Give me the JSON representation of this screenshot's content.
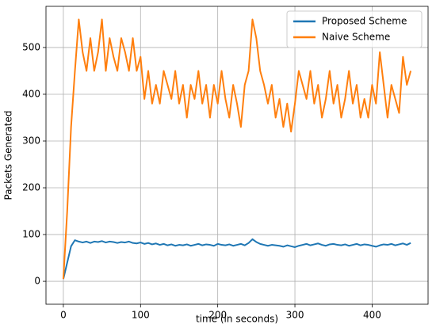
{
  "chart_data": {
    "type": "line",
    "xlabel": "time (in seconds)",
    "ylabel": "Packets Generated",
    "x": [
      0,
      5,
      10,
      15,
      20,
      25,
      30,
      35,
      40,
      45,
      50,
      55,
      60,
      65,
      70,
      75,
      80,
      85,
      90,
      95,
      100,
      105,
      110,
      115,
      120,
      125,
      130,
      135,
      140,
      145,
      150,
      155,
      160,
      165,
      170,
      175,
      180,
      185,
      190,
      195,
      200,
      205,
      210,
      215,
      220,
      225,
      230,
      235,
      240,
      245,
      250,
      255,
      260,
      265,
      270,
      275,
      280,
      285,
      290,
      295,
      300,
      305,
      310,
      315,
      320,
      325,
      330,
      335,
      340,
      345,
      350,
      355,
      360,
      365,
      370,
      375,
      380,
      385,
      390,
      395,
      400,
      405,
      410,
      415,
      420,
      425,
      430,
      435,
      440,
      445,
      450
    ],
    "series": [
      {
        "name": "Proposed Scheme",
        "color": "#1f77b4",
        "values": [
          5,
          40,
          75,
          88,
          85,
          83,
          85,
          82,
          85,
          84,
          86,
          83,
          85,
          84,
          82,
          84,
          83,
          85,
          82,
          81,
          83,
          80,
          82,
          79,
          81,
          78,
          80,
          77,
          79,
          76,
          78,
          77,
          79,
          76,
          78,
          80,
          77,
          79,
          78,
          76,
          80,
          78,
          77,
          79,
          76,
          78,
          80,
          77,
          82,
          90,
          84,
          80,
          78,
          76,
          78,
          77,
          76,
          74,
          77,
          75,
          73,
          76,
          78,
          80,
          77,
          79,
          81,
          78,
          76,
          79,
          80,
          78,
          77,
          79,
          76,
          78,
          80,
          77,
          79,
          78,
          76,
          74,
          77,
          79,
          78,
          80,
          77,
          79,
          81,
          78,
          82
        ]
      },
      {
        "name": "Naive Scheme",
        "color": "#ff7f0e",
        "values": [
          5,
          150,
          330,
          450,
          560,
          490,
          450,
          520,
          450,
          490,
          560,
          450,
          520,
          480,
          450,
          520,
          490,
          450,
          520,
          450,
          480,
          390,
          450,
          380,
          420,
          380,
          450,
          420,
          390,
          450,
          380,
          420,
          350,
          420,
          390,
          450,
          380,
          420,
          350,
          420,
          380,
          450,
          390,
          350,
          420,
          380,
          330,
          420,
          450,
          560,
          520,
          450,
          420,
          380,
          420,
          350,
          390,
          330,
          380,
          320,
          380,
          450,
          420,
          390,
          450,
          380,
          420,
          350,
          390,
          450,
          380,
          420,
          350,
          390,
          450,
          380,
          420,
          350,
          390,
          350,
          420,
          380,
          490,
          420,
          350,
          420,
          390,
          360,
          480,
          420,
          450
        ]
      }
    ],
    "xlim": [
      -22.5,
      472.5
    ],
    "xticks": [
      0,
      100,
      200,
      300,
      400
    ],
    "ylim": [
      -49,
      588
    ],
    "yticks": [
      0,
      100,
      200,
      300,
      400,
      500
    ],
    "grid": true,
    "legend": "upper right"
  }
}
